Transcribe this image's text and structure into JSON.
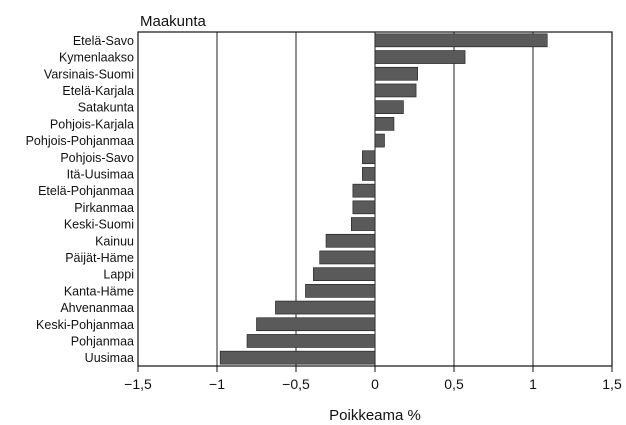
{
  "chart_data": {
    "type": "bar",
    "orientation": "horizontal",
    "title": "Maakunta",
    "xlabel": "Poikkeama %",
    "ylabel": "",
    "xlim": [
      -1.5,
      1.5
    ],
    "xticks": [
      -1.5,
      -1,
      -0.5,
      0,
      0.5,
      1,
      1.5
    ],
    "xtick_labels": [
      "−1,5",
      "−1",
      "−0,5",
      "0",
      "0,5",
      "1",
      "1,5"
    ],
    "grid": "vertical lines at −1, −0,5, 0, 0,5, 1",
    "bar_color": "#5a5a5a",
    "categories": [
      "Etelä-Savo",
      "Kymenlaakso",
      "Varsinais-Suomi",
      "Etelä-Karjala",
      "Satakunta",
      "Pohjois-Karjala",
      "Pohjois-Pohjanmaa",
      "Pohjois-Savo",
      "Itä-Uusimaa",
      "Etelä-Pohjanmaa",
      "Pirkanmaa",
      "Keski-Suomi",
      "Kainuu",
      "Päijät-Häme",
      "Lappi",
      "Kanta-Häme",
      "Ahvenanmaa",
      "Keski-Pohjanmaa",
      "Pohjanmaa",
      "Uusimaa"
    ],
    "values": [
      1.09,
      0.57,
      0.27,
      0.26,
      0.18,
      0.12,
      0.06,
      -0.08,
      -0.08,
      -0.14,
      -0.14,
      -0.15,
      -0.31,
      -0.35,
      -0.39,
      -0.44,
      -0.63,
      -0.75,
      -0.81,
      -0.98
    ]
  }
}
